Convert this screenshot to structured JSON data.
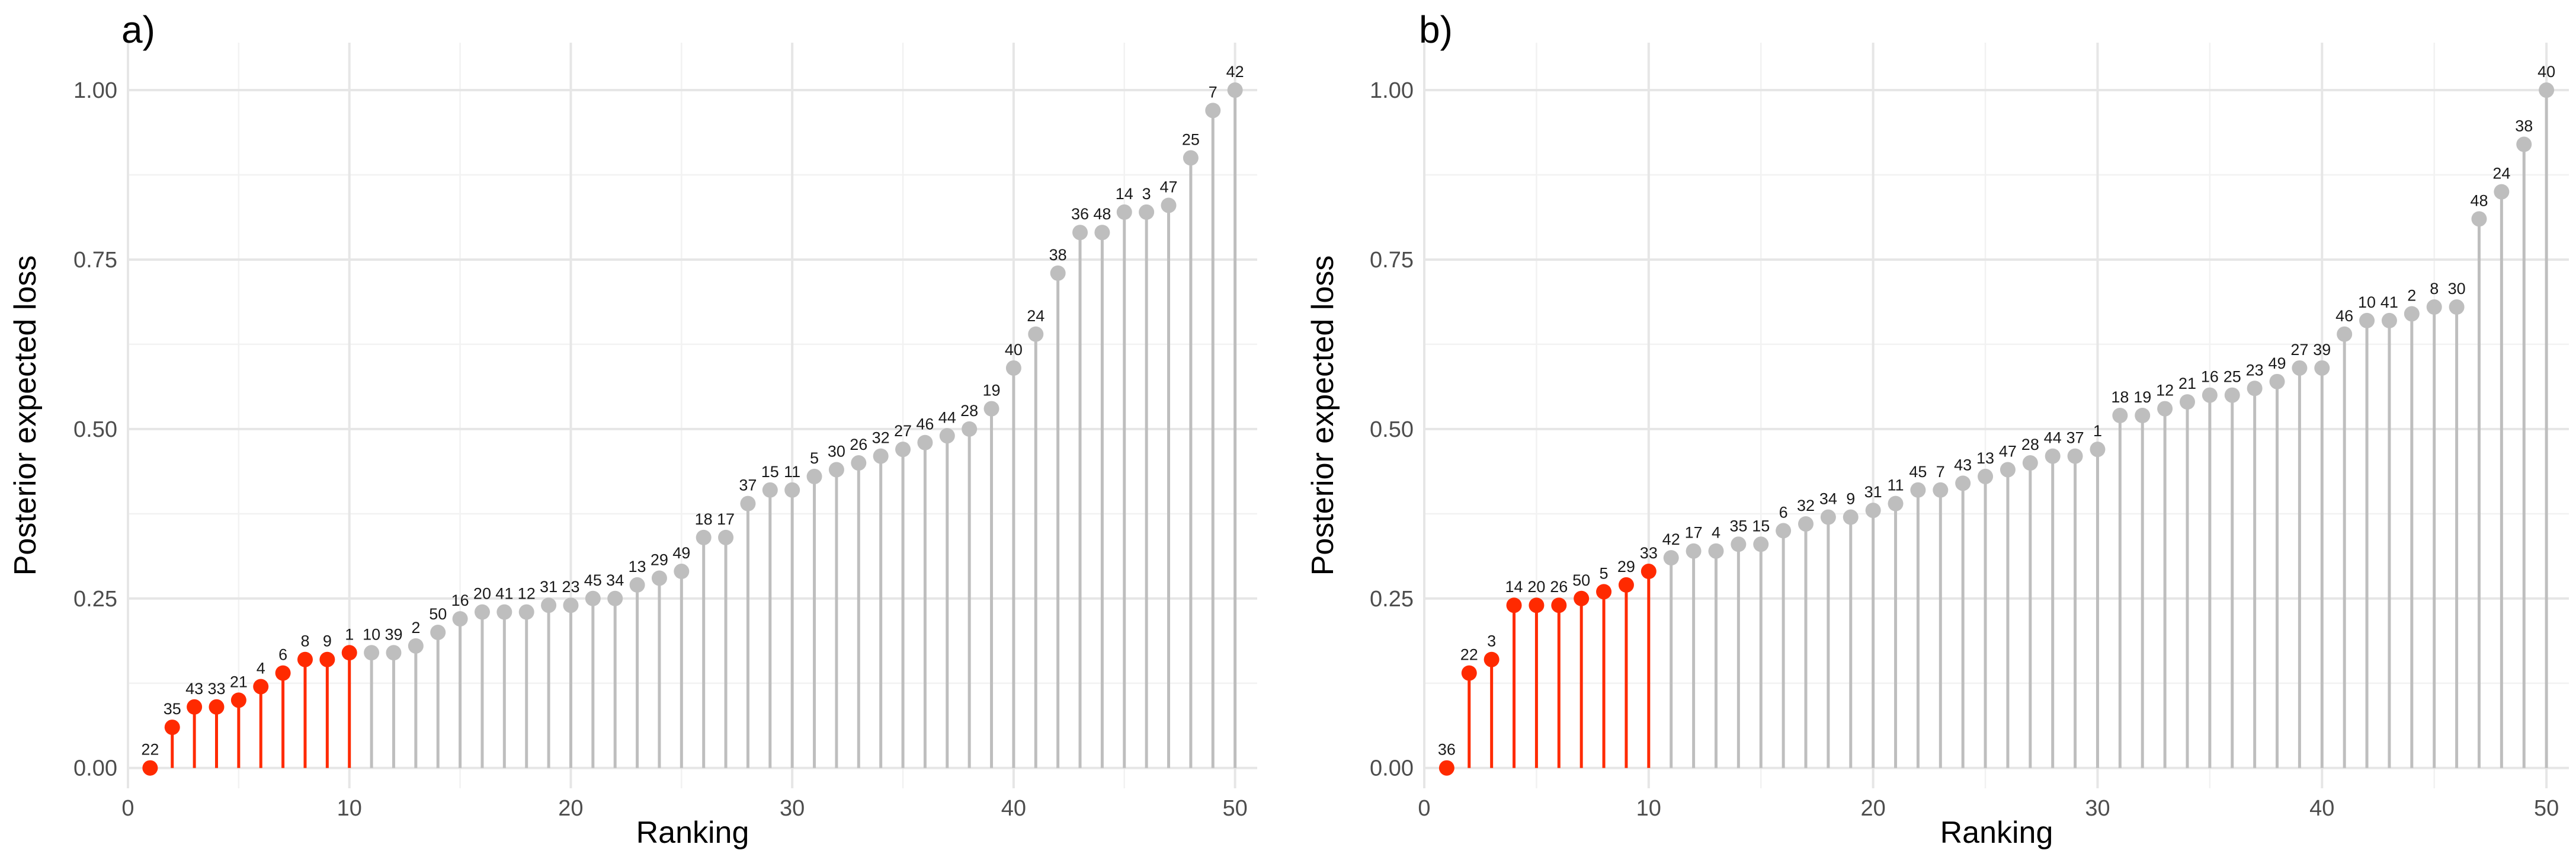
{
  "chart_data": [
    {
      "type": "lollipop",
      "panel_label": "a)",
      "xlabel": "Ranking",
      "ylabel": "Posterior expected loss",
      "xlim": [
        0,
        51
      ],
      "ylim": [
        -0.03,
        1.07
      ],
      "x_ticks": [
        0,
        10,
        20,
        30,
        40,
        50
      ],
      "x_tick_labels": [
        "0",
        "10",
        "20",
        "30",
        "40",
        "50"
      ],
      "y_ticks": [
        0,
        0.25,
        0.5,
        0.75,
        1
      ],
      "y_tick_labels": [
        "0.00",
        "0.25",
        "0.50",
        "0.75",
        "1.00"
      ],
      "grid": true,
      "highlight_top": 10,
      "colors": {
        "highlight": "#ff2a00",
        "other": "#bebebe"
      },
      "x": [
        1,
        2,
        3,
        4,
        5,
        6,
        7,
        8,
        9,
        10,
        11,
        12,
        13,
        14,
        15,
        16,
        17,
        18,
        19,
        20,
        21,
        22,
        23,
        24,
        25,
        26,
        27,
        28,
        29,
        30,
        31,
        32,
        33,
        34,
        35,
        36,
        37,
        38,
        39,
        40,
        41,
        42,
        43,
        44,
        45,
        46,
        47,
        48,
        49,
        50
      ],
      "values": [
        0.0,
        0.06,
        0.09,
        0.09,
        0.1,
        0.12,
        0.14,
        0.16,
        0.16,
        0.17,
        0.17,
        0.17,
        0.18,
        0.2,
        0.22,
        0.23,
        0.23,
        0.23,
        0.24,
        0.24,
        0.25,
        0.25,
        0.27,
        0.28,
        0.29,
        0.34,
        0.34,
        0.39,
        0.41,
        0.41,
        0.43,
        0.44,
        0.45,
        0.46,
        0.47,
        0.48,
        0.49,
        0.5,
        0.53,
        0.59,
        0.64,
        0.73,
        0.79,
        0.79,
        0.82,
        0.82,
        0.83,
        0.9,
        0.97,
        1.0
      ],
      "point_labels": [
        "22",
        "35",
        "43",
        "33",
        "21",
        "4",
        "6",
        "8",
        "9",
        "1",
        "10",
        "39",
        "2",
        "50",
        "16",
        "20",
        "41",
        "12",
        "31",
        "23",
        "45",
        "34",
        "13",
        "29",
        "49",
        "18",
        "17",
        "37",
        "15",
        "11",
        "5",
        "30",
        "26",
        "32",
        "27",
        "46",
        "44",
        "28",
        "19",
        "40",
        "24",
        "38",
        "36",
        "48",
        "14",
        "3",
        "47",
        "25",
        "7",
        "42"
      ]
    },
    {
      "type": "lollipop",
      "panel_label": "b)",
      "xlabel": "Ranking",
      "ylabel": "Posterior expected loss",
      "xlim": [
        0,
        51
      ],
      "ylim": [
        -0.03,
        1.07
      ],
      "x_ticks": [
        0,
        10,
        20,
        30,
        40,
        50
      ],
      "x_tick_labels": [
        "0",
        "10",
        "20",
        "30",
        "40",
        "50"
      ],
      "y_ticks": [
        0,
        0.25,
        0.5,
        0.75,
        1
      ],
      "y_tick_labels": [
        "0.00",
        "0.25",
        "0.50",
        "0.75",
        "1.00"
      ],
      "grid": true,
      "highlight_top": 10,
      "colors": {
        "highlight": "#ff2a00",
        "other": "#bebebe"
      },
      "x": [
        1,
        2,
        3,
        4,
        5,
        6,
        7,
        8,
        9,
        10,
        11,
        12,
        13,
        14,
        15,
        16,
        17,
        18,
        19,
        20,
        21,
        22,
        23,
        24,
        25,
        26,
        27,
        28,
        29,
        30,
        31,
        32,
        33,
        34,
        35,
        36,
        37,
        38,
        39,
        40,
        41,
        42,
        43,
        44,
        45,
        46,
        47,
        48,
        49,
        50
      ],
      "values": [
        0.0,
        0.14,
        0.16,
        0.24,
        0.24,
        0.24,
        0.25,
        0.26,
        0.27,
        0.29,
        0.31,
        0.32,
        0.32,
        0.33,
        0.33,
        0.35,
        0.36,
        0.37,
        0.37,
        0.38,
        0.39,
        0.41,
        0.41,
        0.42,
        0.43,
        0.44,
        0.45,
        0.46,
        0.46,
        0.47,
        0.52,
        0.52,
        0.53,
        0.54,
        0.55,
        0.55,
        0.56,
        0.57,
        0.59,
        0.59,
        0.64,
        0.66,
        0.66,
        0.67,
        0.68,
        0.68,
        0.81,
        0.85,
        0.92,
        1.0
      ],
      "point_labels": [
        "36",
        "22",
        "3",
        "14",
        "20",
        "26",
        "50",
        "5",
        "29",
        "33",
        "42",
        "17",
        "4",
        "35",
        "15",
        "6",
        "32",
        "34",
        "9",
        "31",
        "11",
        "45",
        "7",
        "43",
        "13",
        "47",
        "28",
        "44",
        "37",
        "1",
        "18",
        "19",
        "12",
        "21",
        "16",
        "25",
        "23",
        "49",
        "27",
        "39",
        "46",
        "10",
        "41",
        "2",
        "8",
        "30",
        "48",
        "24",
        "38",
        "40"
      ]
    }
  ]
}
